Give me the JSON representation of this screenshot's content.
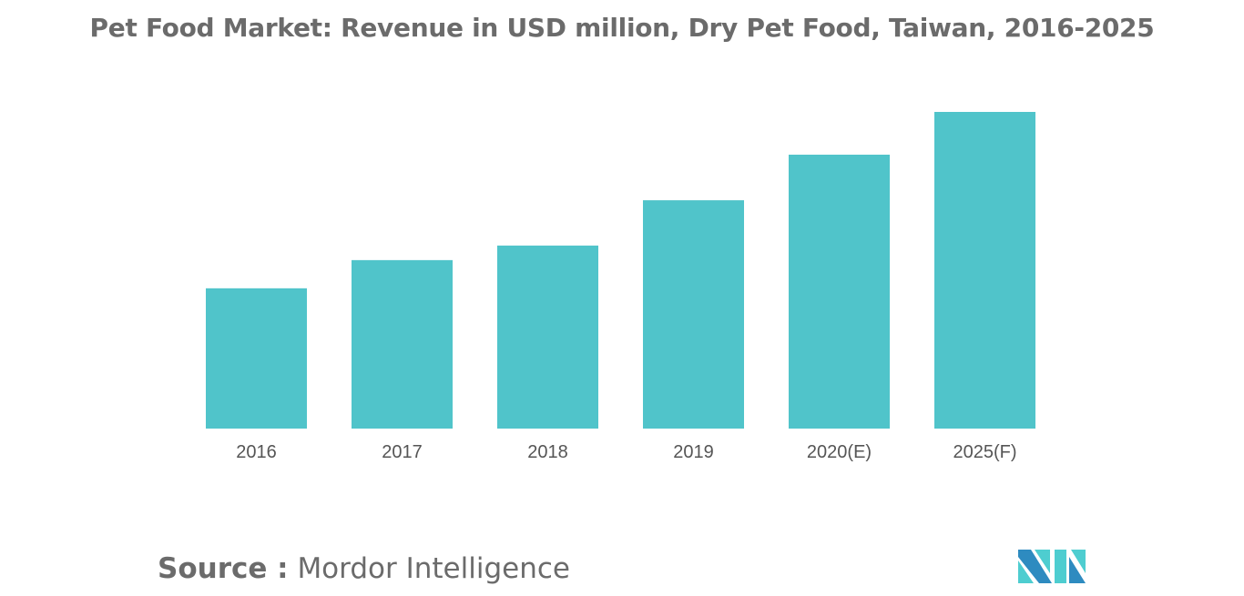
{
  "title": "Pet Food Market: Revenue in USD million, Dry Pet Food, Taiwan, 2016-2025",
  "chart_data": {
    "type": "bar",
    "title": "Pet Food Market: Revenue in USD million, Dry Pet Food, Taiwan, 2016-2025",
    "categories": [
      "2016",
      "2017",
      "2018",
      "2019",
      "2020(E)",
      "2025(F)"
    ],
    "values": [
      44.3,
      53.2,
      57.8,
      72.1,
      86.5,
      100
    ],
    "value_note_relative": "relative scale, 2025(F)=100 (no axis printed)",
    "xlabel": "",
    "ylabel": "",
    "ylim": [
      0,
      100
    ],
    "grid": false,
    "bar_color": "#50c4ca"
  },
  "source": {
    "label": "Source :",
    "text": "Mordor Intelligence"
  },
  "logo": {
    "colors": [
      "#2e8bc0",
      "#4ecdd0"
    ]
  }
}
